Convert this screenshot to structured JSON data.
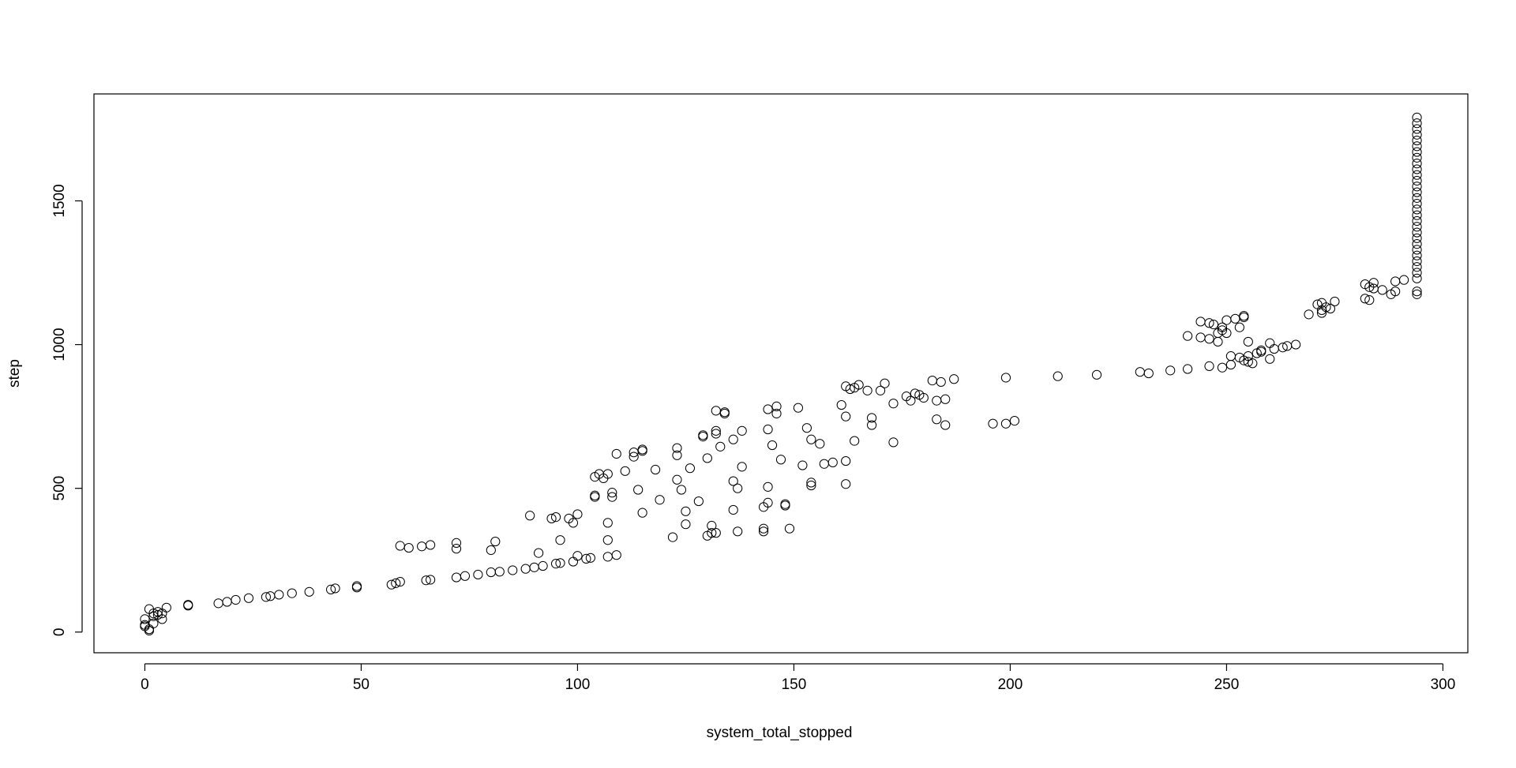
{
  "chart_data": {
    "type": "scatter",
    "x_label": "system_total_stopped",
    "y_label": "step",
    "xlim": [
      -11.76,
      305.76
    ],
    "ylim": [
      -72,
      1872
    ],
    "xticks": [
      0,
      50,
      100,
      150,
      200,
      250,
      300
    ],
    "yticks": [
      0,
      500,
      1000,
      1500
    ],
    "color": "#000000",
    "x": [
      0,
      0,
      0,
      1,
      1,
      1,
      2,
      2,
      2,
      3,
      3,
      4,
      4,
      5,
      10,
      10,
      17,
      19,
      21,
      24,
      28,
      29,
      31,
      34,
      38,
      43,
      44,
      49,
      49,
      57,
      58,
      59,
      59,
      61,
      64,
      65,
      66,
      66,
      72,
      72,
      72,
      74,
      77,
      80,
      80,
      81,
      82,
      85,
      88,
      89,
      90,
      91,
      92,
      94,
      95,
      95,
      96,
      96,
      98,
      99,
      99,
      100,
      100,
      102,
      103,
      104,
      104,
      104,
      105,
      106,
      107,
      107,
      107,
      107,
      108,
      108,
      109,
      109,
      111,
      113,
      113,
      114,
      115,
      115,
      115,
      118,
      119,
      122,
      123,
      123,
      123,
      124,
      125,
      125,
      126,
      128,
      129,
      129,
      130,
      130,
      131,
      131,
      132,
      132,
      132,
      132,
      133,
      134,
      134,
      136,
      136,
      136,
      137,
      137,
      138,
      138,
      143,
      143,
      143,
      144,
      144,
      144,
      144,
      145,
      146,
      146,
      147,
      148,
      148,
      149,
      151,
      152,
      153,
      154,
      154,
      154,
      156,
      157,
      159,
      161,
      162,
      162,
      162,
      162,
      163,
      164,
      164,
      165,
      167,
      168,
      168,
      170,
      171,
      173,
      173,
      176,
      177,
      178,
      179,
      180,
      182,
      183,
      183,
      184,
      185,
      185,
      187,
      196,
      199,
      199,
      201,
      211,
      220,
      230,
      232,
      237,
      241,
      241,
      244,
      244,
      246,
      246,
      246,
      247,
      248,
      248,
      249,
      249,
      249,
      250,
      250,
      251,
      251,
      252,
      253,
      253,
      254,
      254,
      254,
      255,
      255,
      255,
      256,
      257,
      258,
      258,
      260,
      260,
      261,
      263,
      264,
      266,
      269,
      271,
      272,
      272,
      272,
      273,
      274,
      275,
      282,
      282,
      283,
      283,
      284,
      284,
      286,
      288,
      289,
      289,
      291,
      294,
      294,
      294,
      294,
      294,
      294,
      294,
      294,
      294,
      294,
      294,
      294,
      294,
      294,
      294,
      294,
      294,
      294,
      294,
      294,
      294,
      294,
      294,
      294,
      294,
      294,
      294,
      294,
      294,
      294,
      294
    ],
    "values": [
      45,
      25,
      20,
      80,
      10,
      5,
      65,
      30,
      55,
      70,
      60,
      45,
      65,
      85,
      95,
      92,
      100,
      105,
      112,
      118,
      122,
      125,
      130,
      135,
      140,
      148,
      152,
      155,
      160,
      165,
      170,
      175,
      300,
      293,
      298,
      180,
      182,
      303,
      190,
      290,
      310,
      195,
      200,
      208,
      285,
      315,
      210,
      215,
      220,
      405,
      225,
      275,
      230,
      395,
      238,
      400,
      240,
      320,
      395,
      245,
      380,
      410,
      265,
      255,
      258,
      470,
      475,
      540,
      550,
      535,
      550,
      380,
      320,
      262,
      470,
      485,
      268,
      620,
      560,
      610,
      625,
      495,
      415,
      635,
      630,
      565,
      460,
      330,
      640,
      615,
      530,
      495,
      420,
      375,
      570,
      455,
      680,
      685,
      605,
      335,
      345,
      370,
      345,
      690,
      700,
      770,
      645,
      760,
      765,
      670,
      525,
      425,
      500,
      350,
      700,
      575,
      360,
      350,
      435,
      505,
      775,
      705,
      450,
      650,
      785,
      760,
      600,
      445,
      440,
      360,
      780,
      580,
      710,
      670,
      510,
      520,
      655,
      585,
      590,
      790,
      855,
      750,
      595,
      515,
      845,
      665,
      850,
      860,
      840,
      745,
      720,
      840,
      865,
      795,
      660,
      820,
      805,
      830,
      825,
      815,
      875,
      740,
      805,
      870,
      810,
      720,
      880,
      725,
      885,
      725,
      735,
      890,
      895,
      905,
      900,
      910,
      1030,
      915,
      1080,
      1025,
      925,
      1075,
      1020,
      1070,
      1040,
      1010,
      1050,
      920,
      1060,
      1040,
      1085,
      960,
      930,
      1090,
      955,
      1060,
      1095,
      1100,
      945,
      1010,
      940,
      960,
      935,
      970,
      975,
      980,
      1005,
      950,
      985,
      990,
      995,
      1000,
      1105,
      1140,
      1110,
      1120,
      1145,
      1130,
      1125,
      1150,
      1210,
      1160,
      1155,
      1200,
      1195,
      1215,
      1190,
      1175,
      1185,
      1220,
      1225,
      1175,
      1185,
      1230,
      1250,
      1270,
      1290,
      1310,
      1330,
      1350,
      1370,
      1390,
      1410,
      1430,
      1450,
      1470,
      1490,
      1510,
      1530,
      1550,
      1570,
      1590,
      1610,
      1630,
      1650,
      1670,
      1690,
      1710,
      1730,
      1750,
      1770,
      1790
    ]
  }
}
